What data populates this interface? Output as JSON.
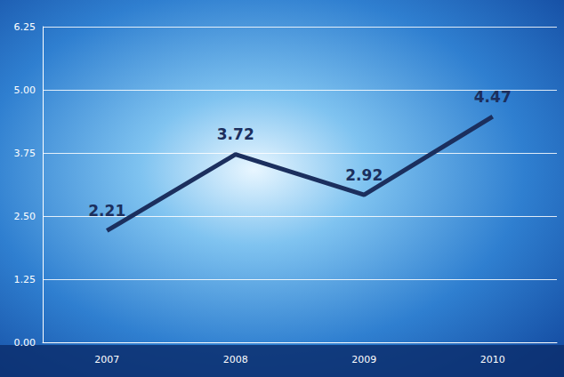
{
  "chart_data": {
    "type": "line",
    "categories": [
      "2007",
      "2008",
      "2009",
      "2010"
    ],
    "values": [
      2.21,
      3.72,
      2.92,
      4.47
    ],
    "color": "#1b2f5e",
    "ylim": [
      0,
      6.25
    ],
    "yticks": [
      {
        "value": 0,
        "label": "0.00"
      },
      1.25,
      {
        "value": 2.5,
        "label": "2.50"
      },
      3.75,
      {
        "value": 5,
        "label": "5.00"
      },
      6.25
    ],
    "grid": true,
    "data_labels": true
  }
}
